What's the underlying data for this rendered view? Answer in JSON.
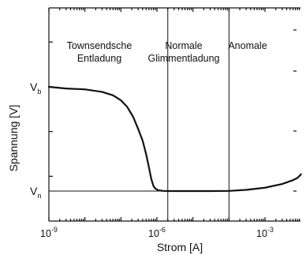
{
  "chart_data": {
    "type": "line",
    "xlabel": "Strom [A]",
    "ylabel": "Spannung [V]",
    "x_scale": "log",
    "xlim": [
      1e-09,
      0.1
    ],
    "ylim": [
      0,
      1
    ],
    "x_ticks": [
      {
        "base": "10",
        "exp": "-9",
        "value": 1e-09
      },
      {
        "base": "10",
        "exp": "-6",
        "value": 1e-06
      },
      {
        "base": "10",
        "exp": "-3",
        "value": 0.001
      }
    ],
    "y_labels": [
      {
        "base": "V",
        "sub": "b",
        "value": 0.72
      },
      {
        "base": "V",
        "sub": "n",
        "value": 0.1
      }
    ],
    "regions": [
      {
        "lines": [
          "Townsendsche",
          "Entladung"
        ]
      },
      {
        "lines": [
          "Normale",
          "Glimmentladung"
        ]
      },
      {
        "lines": [
          "Anomale"
        ]
      }
    ],
    "region_boundaries_x": [
      2e-06,
      0.0001
    ],
    "reference_line_y": 0.1,
    "series": [
      {
        "x": [
          1e-09,
          3e-09,
          1e-08,
          3e-08,
          6e-08,
          1e-07,
          1.5e-07,
          2.2e-07,
          3e-07,
          4e-07,
          5e-07,
          6e-07,
          7e-07,
          8e-07,
          9e-07,
          1.1e-06,
          1.5e-06,
          2.5e-06,
          5e-06,
          1e-05,
          3e-05,
          0.0001,
          0.0003,
          0.001,
          0.003,
          0.006,
          0.008,
          0.01
        ],
        "y": [
          0.72,
          0.71,
          0.705,
          0.69,
          0.67,
          0.64,
          0.6,
          0.54,
          0.47,
          0.4,
          0.32,
          0.24,
          0.17,
          0.13,
          0.115,
          0.104,
          0.101,
          0.1,
          0.1,
          0.1,
          0.1,
          0.101,
          0.107,
          0.12,
          0.142,
          0.165,
          0.178,
          0.2
        ]
      }
    ]
  }
}
